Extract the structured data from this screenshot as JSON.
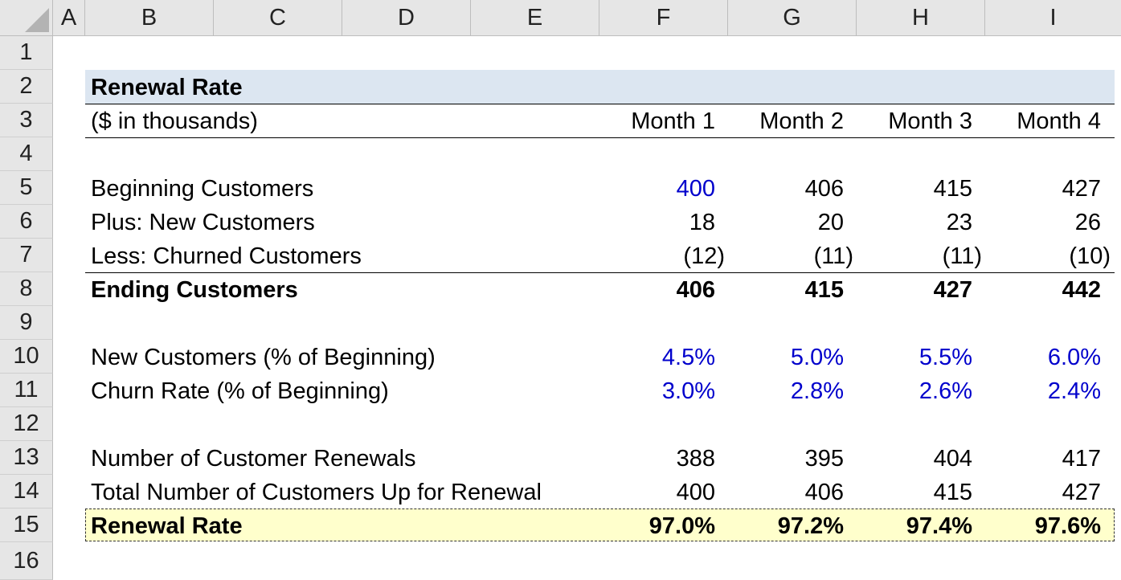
{
  "columns": [
    "A",
    "B",
    "C",
    "D",
    "E",
    "F",
    "G",
    "H",
    "I"
  ],
  "rows": [
    "1",
    "2",
    "3",
    "4",
    "5",
    "6",
    "7",
    "8",
    "9",
    "10",
    "11",
    "12",
    "13",
    "14",
    "15",
    "16"
  ],
  "title": "Renewal Rate",
  "units": "($ in thousands)",
  "months": [
    "Month 1",
    "Month 2",
    "Month 3",
    "Month 4"
  ],
  "beginning": {
    "label": "Beginning Customers",
    "values": [
      "400",
      "406",
      "415",
      "427"
    ]
  },
  "new_customers": {
    "label": "Plus: New Customers",
    "values": [
      "18",
      "20",
      "23",
      "26"
    ]
  },
  "churned": {
    "label": "Less: Churned Customers",
    "values": [
      "(12)",
      "(11)",
      "(11)",
      "(10)"
    ]
  },
  "ending": {
    "label": "Ending Customers",
    "values": [
      "406",
      "415",
      "427",
      "442"
    ]
  },
  "new_pct": {
    "label": "New Customers (% of Beginning)",
    "values": [
      "4.5%",
      "5.0%",
      "5.5%",
      "6.0%"
    ]
  },
  "churn_rate": {
    "label": "Churn Rate (% of Beginning)",
    "values": [
      "3.0%",
      "2.8%",
      "2.6%",
      "2.4%"
    ]
  },
  "renewals": {
    "label": "Number of Customer Renewals",
    "values": [
      "388",
      "395",
      "404",
      "417"
    ]
  },
  "up_for_renewal": {
    "label": "Total Number of Customers Up for Renewal",
    "values": [
      "400",
      "406",
      "415",
      "427"
    ]
  },
  "renewal_rate": {
    "label": "Renewal Rate",
    "values": [
      "97.0%",
      "97.2%",
      "97.4%",
      "97.6%"
    ]
  },
  "colors": {
    "input_blue": "#0000cc",
    "title_fill": "#dce6f1",
    "result_fill": "#ffffcc",
    "header_gray": "#e6e6e6"
  }
}
